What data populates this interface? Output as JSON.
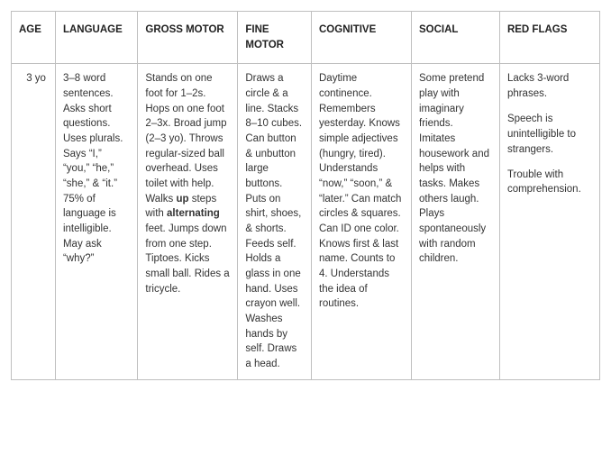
{
  "colors": {
    "border": "#bfbfbf",
    "text": "#333333",
    "header_text": "#222222",
    "background": "#ffffff"
  },
  "typography": {
    "font_family": "Arial, Helvetica, sans-serif",
    "header_fontsize_pt": 9,
    "cell_fontsize_pt": 9,
    "line_height": 1.45,
    "header_weight": 700
  },
  "table": {
    "headers": {
      "age": "AGE",
      "language": "LANGUAGE",
      "gross_motor": "GROSS MOTOR",
      "fine_motor": "FINE MOTOR",
      "cognitive": "COGNITIVE",
      "social": "SOCIAL",
      "red_flags": "RED FLAGS"
    },
    "column_widths_pct": {
      "age": 7.5,
      "language": 14,
      "gross_motor": 17,
      "fine_motor": 12.5,
      "cognitive": 17,
      "social": 15,
      "red_flags": 17
    },
    "row": {
      "age": "3 yo",
      "language": "3–8 word sentences. Asks short questions. Uses plurals. Says “I,” “you,” “he,” “she,” & “it.” 75% of language is intelligible. May ask “why?”",
      "gross_motor": {
        "pre": "Stands on one foot for 1–2s. Hops on one foot 2–3x. Broad jump (2–3 yo). Throws regular-sized ball overhead. Uses toilet with help. Walks ",
        "b1": "up",
        "mid": " steps with ",
        "b2": "alternating",
        "post": " feet. Jumps down from one step. Tiptoes. Kicks small ball. Rides a tricycle."
      },
      "fine_motor": "Draws a circle & a line. Stacks 8–10 cubes. Can button & unbutton large buttons. Puts on shirt, shoes, & shorts. Feeds self. Holds a glass in one hand. Uses crayon well. Washes hands by self. Draws a head.",
      "cognitive": "Daytime continence. Remembers yesterday. Knows simple adjectives (hungry, tired). Understands “now,” “soon,” & “later.” Can match circles & squares. Can ID one color. Knows first & last name. Counts to 4. Understands the idea of routines.",
      "social": "Some pretend play with imaginary friends. Imitates housework and helps with tasks. Makes others laugh. Plays spontaneously with random children.",
      "red_flags": {
        "p1": "Lacks 3-word phrases.",
        "p2": "Speech is unintelligible to strangers.",
        "p3": "Trouble with comprehension."
      }
    }
  }
}
